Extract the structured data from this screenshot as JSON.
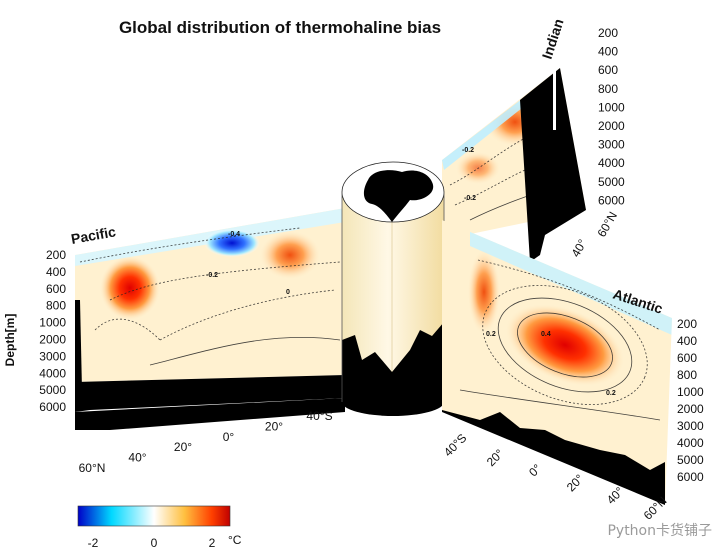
{
  "chart_data": {
    "type": "heatmap",
    "title": "Global distribution of thermohaline bias",
    "variable_unit": "°C",
    "colorbar": {
      "ticks": [
        "-2",
        "0",
        "2"
      ],
      "unit": "°C",
      "range": [
        -2,
        2
      ],
      "colors": [
        "#0000c8",
        "#00d8ff",
        "#ffffff",
        "#ffc040",
        "#ff4000",
        "#c00000"
      ]
    },
    "ylabel": "Depth[m]",
    "depth_ticks": [
      "200",
      "400",
      "600",
      "800",
      "1000",
      "2000",
      "3000",
      "4000",
      "5000",
      "6000"
    ],
    "sections": [
      {
        "name": "Pacific",
        "lat_ticks": [
          "60°N",
          "40°",
          "20°",
          "0°",
          "20°",
          "40°S"
        ],
        "contour_labels": [
          "-0.4",
          "-0.2",
          "0"
        ],
        "anomalies": [
          {
            "lat": "40°N",
            "depth_m": 400,
            "value": 1.6
          },
          {
            "lat": "10°S",
            "depth_m": 200,
            "value": 1.2
          },
          {
            "lat": "0°",
            "depth_m": 100,
            "value": -2.0
          }
        ]
      },
      {
        "name": "Atlantic",
        "lat_ticks": [
          "40°S",
          "20°",
          "0°",
          "20°",
          "40°",
          "60°N"
        ],
        "contour_labels": [
          "0.2",
          "0.4",
          "0.2"
        ],
        "anomalies": [
          {
            "lat": "20°N",
            "depth_m": 1500,
            "value": 2.0
          },
          {
            "lat": "40°S",
            "depth_m": 400,
            "value": 1.6
          },
          {
            "lat": "60°N",
            "depth_m": 100,
            "value": -0.8
          }
        ]
      },
      {
        "name": "Indian",
        "lat_ticks": [
          "40°",
          "60°N"
        ],
        "contour_labels": [
          "-0.2",
          "-0.2"
        ],
        "anomalies": [
          {
            "lat": "20°N",
            "depth_m": 300,
            "value": 1.6
          },
          {
            "lat": "40°S",
            "depth_m": 100,
            "value": -0.8
          }
        ]
      }
    ]
  },
  "watermark": "Python卡货铺子"
}
